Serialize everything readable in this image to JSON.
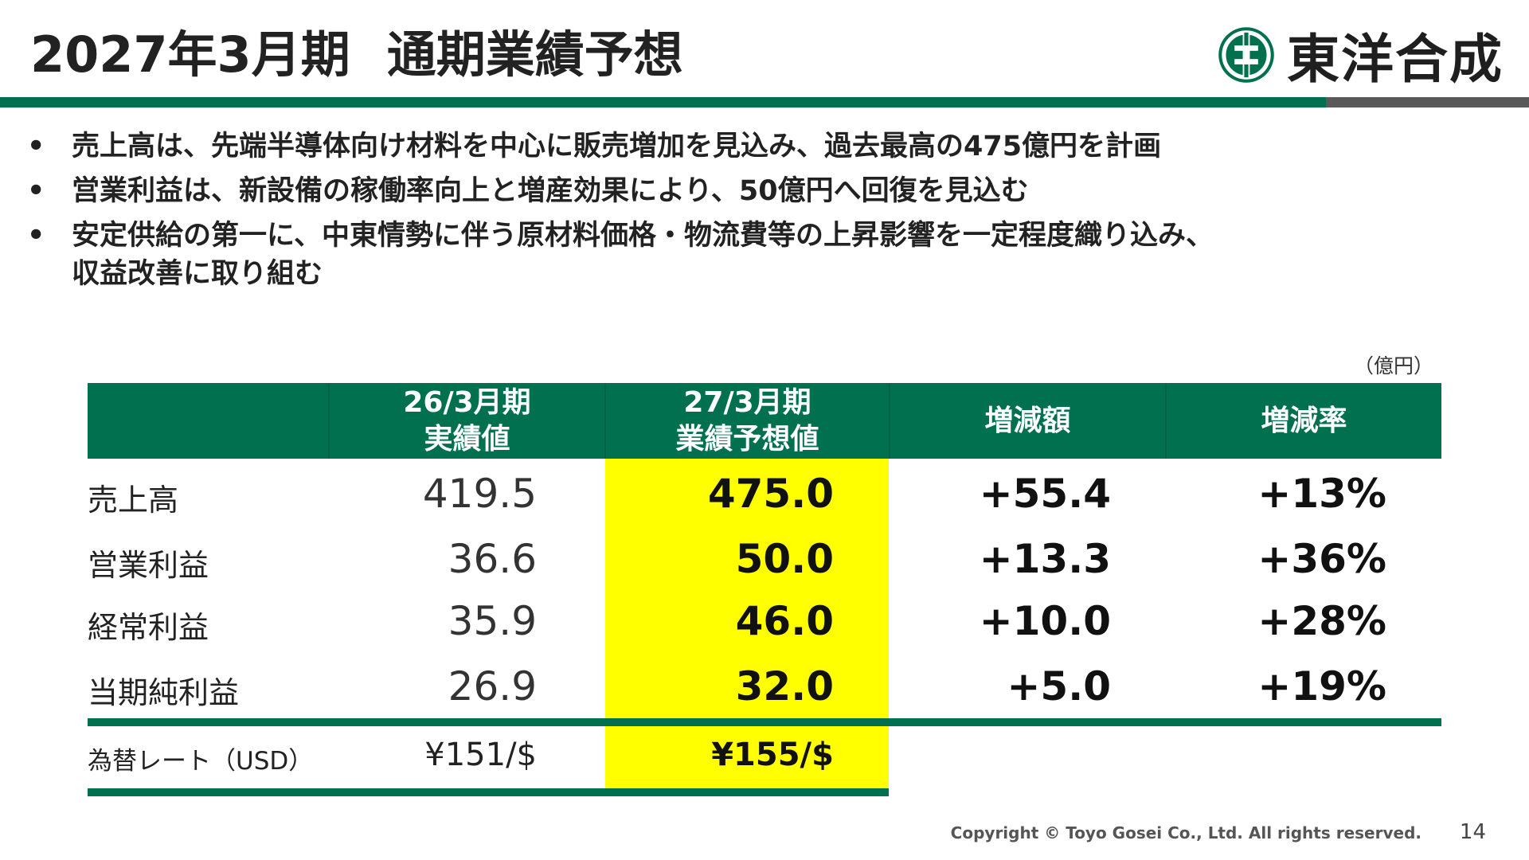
{
  "header": {
    "title_main": "2027年3月期",
    "title_sub": "通期業績予想",
    "logo_text": "東洋合成",
    "logo_icon": "toyo-gosei-logo-icon"
  },
  "bullets": [
    {
      "lines": [
        "売上高は、先端半導体向け材料を中心に販売増加を見込み、過去最高の475億円を計画"
      ]
    },
    {
      "lines": [
        "営業利益は、新設備の稼働率向上と増産効果により、50億円へ回復を見込む"
      ]
    },
    {
      "lines": [
        "安定供給の第一に、中東情勢に伴う原材料価格・物流費等の上昇影響を一定程度織り込み、",
        "収益改善に取り組む"
      ]
    }
  ],
  "bullet_symbol": "•",
  "unit": "（億円）",
  "table": {
    "headers": {
      "col_actual": [
        "26/3月期",
        "実績値"
      ],
      "col_forecast": [
        "27/3月期",
        "業績予想値"
      ],
      "col_diff": "増減額",
      "col_rate": "増減率"
    },
    "rows": [
      {
        "label": "売上高",
        "actual": "419.5",
        "forecast": "475.0",
        "diff": "+55.4",
        "rate": "+13%"
      },
      {
        "label": "営業利益",
        "actual": "36.6",
        "forecast": "50.0",
        "diff": "+13.3",
        "rate": "+36%"
      },
      {
        "label": "経常利益",
        "actual": "35.9",
        "forecast": "46.0",
        "diff": "+10.0",
        "rate": "+28%"
      },
      {
        "label": "当期純利益",
        "actual": "26.9",
        "forecast": "32.0",
        "diff": "+5.0",
        "rate": "+19%"
      }
    ],
    "fx_row": {
      "label": "為替レート（USD）",
      "actual": "¥151/$",
      "forecast": "¥155/$"
    }
  },
  "footer": {
    "copyright": "Copyright © Toyo Gosei Co., Ltd. All rights reserved.",
    "page": "14"
  },
  "colors": {
    "accent_green": "#00704f",
    "highlight_yellow": "#ffff00",
    "rule_gray": "#595959"
  }
}
